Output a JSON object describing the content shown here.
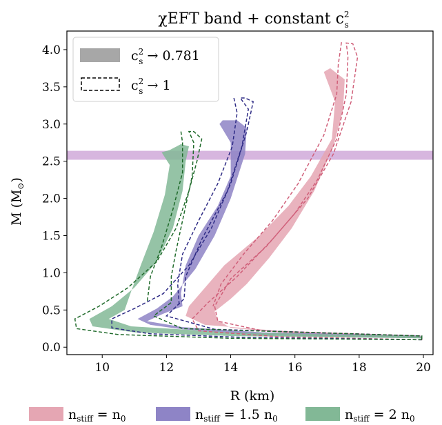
{
  "chart_data": {
    "type": "area",
    "title": "χEFT band + constant c",
    "title_sup": "2",
    "title_sub": "s",
    "xlabel": "R (km)",
    "ylabel": "M (M",
    "ylabel_sub": "⊙",
    "ylabel_close": ")",
    "xlim": [
      8.9,
      20.3
    ],
    "ylim": [
      -0.1,
      4.25
    ],
    "xticks": [
      10,
      12,
      14,
      16,
      18,
      20
    ],
    "yticks": [
      0.0,
      0.5,
      1.0,
      1.5,
      2.0,
      2.5,
      3.0,
      3.5,
      4.0
    ],
    "xtick_labels": [
      "10",
      "12",
      "14",
      "16",
      "18",
      "20"
    ],
    "ytick_labels": [
      "0.0",
      "0.5",
      "1.0",
      "1.5",
      "2.0",
      "2.5",
      "3.0",
      "3.5",
      "4.0"
    ],
    "grid": false,
    "mass_band": {
      "ymin": 2.52,
      "ymax": 2.64,
      "color": "#d7b6df"
    },
    "legend_top": {
      "placement": "top-left",
      "entries": [
        {
          "style": "solid",
          "base": "c",
          "sup": "2",
          "sub": "s",
          "rest": " → 0.781"
        },
        {
          "style": "dashed",
          "base": "c",
          "sup": "2",
          "sub": "s",
          "rest": " → 1"
        }
      ]
    },
    "legend_bottom": {
      "placement": "bottom",
      "entries": [
        {
          "color": "#e5a6b3",
          "pre": "n",
          "sub": "stiff",
          "rest": " = n",
          "sub2": "0",
          "tail": ""
        },
        {
          "color": "#8e84c6",
          "pre": "n",
          "sub": "stiff",
          "rest": " = 1.5 n",
          "sub2": "0",
          "tail": ""
        },
        {
          "color": "#82b896",
          "pre": "n",
          "sub": "stiff",
          "rest": " = 2 n",
          "sub2": "0",
          "tail": ""
        }
      ]
    },
    "series": [
      {
        "name": "n_stiff = n_0",
        "fill": "#e5a6b3",
        "stroke": "#d0607a",
        "band": [
          [
            19.95,
            0.12
          ],
          [
            16.0,
            0.18
          ],
          [
            14.0,
            0.26
          ],
          [
            13.6,
            0.36
          ],
          [
            13.5,
            0.48
          ],
          [
            14.0,
            0.65
          ],
          [
            14.5,
            0.85
          ],
          [
            15.2,
            1.2
          ],
          [
            15.9,
            1.6
          ],
          [
            16.6,
            2.1
          ],
          [
            17.2,
            2.7
          ],
          [
            17.5,
            3.2
          ],
          [
            17.55,
            3.6
          ],
          [
            17.1,
            3.75
          ],
          [
            16.9,
            3.7
          ],
          [
            17.25,
            3.3
          ],
          [
            17.15,
            2.8
          ],
          [
            16.5,
            2.3
          ],
          [
            15.8,
            1.9
          ],
          [
            14.9,
            1.5
          ],
          [
            13.8,
            1.1
          ],
          [
            13.2,
            0.8
          ],
          [
            12.7,
            0.55
          ],
          [
            12.6,
            0.42
          ],
          [
            13.2,
            0.3
          ],
          [
            15.5,
            0.22
          ],
          [
            19.9,
            0.15
          ]
        ],
        "dashed_outer": [
          [
            19.95,
            0.1
          ],
          [
            15.5,
            0.14
          ],
          [
            13.0,
            0.22
          ],
          [
            12.8,
            0.38
          ],
          [
            13.3,
            0.6
          ],
          [
            14.2,
            0.95
          ],
          [
            15.3,
            1.45
          ],
          [
            16.4,
            2.0
          ],
          [
            17.2,
            2.6
          ],
          [
            17.75,
            3.3
          ],
          [
            17.95,
            3.9
          ],
          [
            17.8,
            4.08
          ],
          [
            17.6,
            4.09
          ],
          [
            17.65,
            3.9
          ],
          [
            17.6,
            3.4
          ],
          [
            17.3,
            2.8
          ],
          [
            16.7,
            2.25
          ],
          [
            16.0,
            1.8
          ],
          [
            15.1,
            1.35
          ],
          [
            14.0,
            0.92
          ],
          [
            13.5,
            0.55
          ],
          [
            13.6,
            0.35
          ],
          [
            15.0,
            0.22
          ],
          [
            19.95,
            0.15
          ]
        ],
        "dashed_inner": [
          [
            17.45,
            4.1
          ],
          [
            17.35,
            3.8
          ],
          [
            17.3,
            3.4
          ],
          [
            16.9,
            2.85
          ],
          [
            16.1,
            2.2
          ],
          [
            15.3,
            1.7
          ],
          [
            14.4,
            1.25
          ],
          [
            13.7,
            0.85
          ],
          [
            13.45,
            0.55
          ]
        ]
      },
      {
        "name": "n_stiff = 1.5 n_0",
        "fill": "#8e84c6",
        "stroke": "#2e2b85",
        "band": [
          [
            19.95,
            0.12
          ],
          [
            15.0,
            0.16
          ],
          [
            12.5,
            0.24
          ],
          [
            11.5,
            0.3
          ],
          [
            11.1,
            0.38
          ],
          [
            11.7,
            0.52
          ],
          [
            12.2,
            0.68
          ],
          [
            12.9,
            1.05
          ],
          [
            13.5,
            1.5
          ],
          [
            14.0,
            2.0
          ],
          [
            14.45,
            2.6
          ],
          [
            14.5,
            2.95
          ],
          [
            14.2,
            3.05
          ],
          [
            13.75,
            3.05
          ],
          [
            13.65,
            3.0
          ],
          [
            14.0,
            2.75
          ],
          [
            14.0,
            2.3
          ],
          [
            13.6,
            1.9
          ],
          [
            13.0,
            1.5
          ],
          [
            12.6,
            1.1
          ],
          [
            12.45,
            0.72
          ],
          [
            12.5,
            0.55
          ],
          [
            11.9,
            0.45
          ],
          [
            11.4,
            0.35
          ],
          [
            12.5,
            0.27
          ],
          [
            15.0,
            0.2
          ],
          [
            19.9,
            0.16
          ]
        ],
        "dashed_outer": [
          [
            19.95,
            0.1
          ],
          [
            14.5,
            0.13
          ],
          [
            11.5,
            0.18
          ],
          [
            10.3,
            0.26
          ],
          [
            10.3,
            0.38
          ],
          [
            11.0,
            0.52
          ],
          [
            11.9,
            0.72
          ],
          [
            12.7,
            1.1
          ],
          [
            13.4,
            1.6
          ],
          [
            14.0,
            2.2
          ],
          [
            14.5,
            2.9
          ],
          [
            14.7,
            3.3
          ],
          [
            14.45,
            3.35
          ],
          [
            14.3,
            3.35
          ],
          [
            14.55,
            3.2
          ],
          [
            14.35,
            2.7
          ],
          [
            13.9,
            2.1
          ],
          [
            13.1,
            1.45
          ],
          [
            12.6,
            0.95
          ],
          [
            12.55,
            0.65
          ],
          [
            12.0,
            0.42
          ],
          [
            13.5,
            0.24
          ],
          [
            19.95,
            0.15
          ]
        ],
        "dashed_inner": [
          [
            14.1,
            3.35
          ],
          [
            14.2,
            3.15
          ],
          [
            14.05,
            2.7
          ],
          [
            13.6,
            2.2
          ],
          [
            13.0,
            1.7
          ],
          [
            12.5,
            1.25
          ],
          [
            12.35,
            0.85
          ],
          [
            12.4,
            0.55
          ]
        ]
      },
      {
        "name": "n_stiff = 2 n_0",
        "fill": "#82b896",
        "stroke": "#1f6a2a",
        "band": [
          [
            19.95,
            0.12
          ],
          [
            14.0,
            0.15
          ],
          [
            11.0,
            0.2
          ],
          [
            9.7,
            0.28
          ],
          [
            9.6,
            0.38
          ],
          [
            10.3,
            0.55
          ],
          [
            11.0,
            0.8
          ],
          [
            11.7,
            1.15
          ],
          [
            12.2,
            1.6
          ],
          [
            12.5,
            2.1
          ],
          [
            12.6,
            2.5
          ],
          [
            12.7,
            2.7
          ],
          [
            12.45,
            2.73
          ],
          [
            12.1,
            2.65
          ],
          [
            11.85,
            2.62
          ],
          [
            12.1,
            2.45
          ],
          [
            11.95,
            2.05
          ],
          [
            11.6,
            1.55
          ],
          [
            11.2,
            1.1
          ],
          [
            10.9,
            0.75
          ],
          [
            10.7,
            0.5
          ],
          [
            10.2,
            0.38
          ],
          [
            10.9,
            0.28
          ],
          [
            14.0,
            0.2
          ],
          [
            19.9,
            0.15
          ]
        ],
        "dashed_outer": [
          [
            19.95,
            0.1
          ],
          [
            14.0,
            0.12
          ],
          [
            10.5,
            0.17
          ],
          [
            9.2,
            0.25
          ],
          [
            9.15,
            0.38
          ],
          [
            9.9,
            0.55
          ],
          [
            10.8,
            0.8
          ],
          [
            11.7,
            1.15
          ],
          [
            12.3,
            1.6
          ],
          [
            12.7,
            2.1
          ],
          [
            12.95,
            2.5
          ],
          [
            13.1,
            2.8
          ],
          [
            12.85,
            2.9
          ],
          [
            12.7,
            2.9
          ],
          [
            12.85,
            2.75
          ],
          [
            12.8,
            2.3
          ],
          [
            12.55,
            1.8
          ],
          [
            12.3,
            1.3
          ],
          [
            12.15,
            0.95
          ],
          [
            12.15,
            0.6
          ],
          [
            11.6,
            0.42
          ],
          [
            12.5,
            0.25
          ],
          [
            19.95,
            0.15
          ]
        ],
        "dashed_inner": [
          [
            12.45,
            2.9
          ],
          [
            12.5,
            2.75
          ],
          [
            12.5,
            2.35
          ],
          [
            12.2,
            1.85
          ],
          [
            11.85,
            1.35
          ],
          [
            11.5,
            0.95
          ],
          [
            11.4,
            0.6
          ]
        ]
      }
    ]
  }
}
